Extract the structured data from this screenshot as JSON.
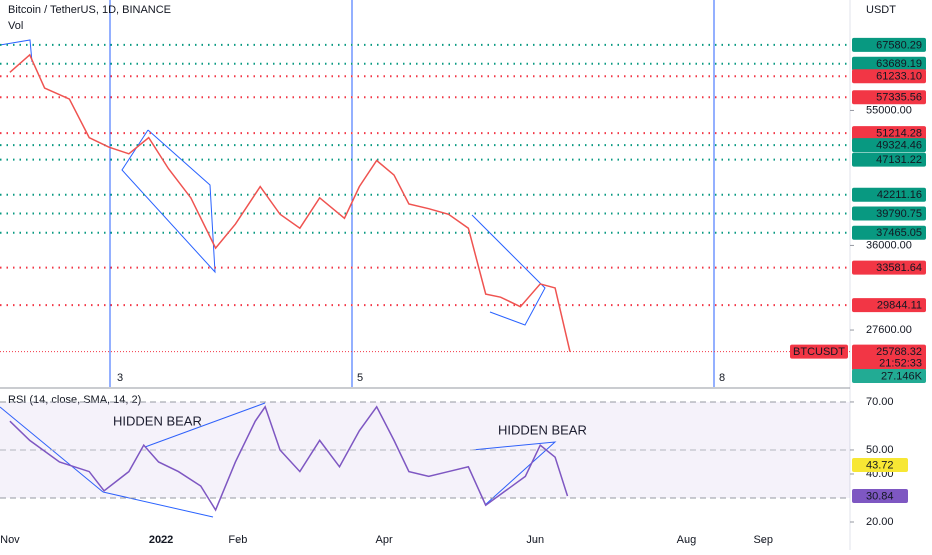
{
  "header": {
    "title": "Bitcoin / TetherUS, 1D, BINANCE",
    "volume_label": "Vol",
    "currency": "USDT"
  },
  "chart_data": [
    {
      "type": "line",
      "scale": "log",
      "color": "#ef5350",
      "x": [
        0,
        8,
        14,
        24,
        32,
        40,
        48,
        56,
        64,
        73,
        83,
        91,
        101,
        109,
        117,
        125,
        135,
        141,
        148,
        155,
        161,
        169,
        177,
        185,
        192,
        198,
        206,
        214,
        220,
        226
      ],
      "values": [
        62000,
        65500,
        59000,
        57000,
        50500,
        49000,
        48000,
        50500,
        45800,
        41800,
        35700,
        38500,
        43300,
        39700,
        38000,
        41800,
        39200,
        43300,
        47000,
        44900,
        41000,
        40400,
        39700,
        38000,
        30900,
        30600,
        29700,
        31900,
        31500,
        25788.32
      ],
      "xlim": [
        -4,
        339
      ],
      "xticks": [
        {
          "value": 0,
          "label": "Nov"
        },
        {
          "value": 61,
          "label": "2022"
        },
        {
          "value": 92,
          "label": "Feb"
        },
        {
          "value": 151,
          "label": "Apr"
        },
        {
          "value": 212,
          "label": "Jun"
        },
        {
          "value": 273,
          "label": "Aug"
        },
        {
          "value": 304,
          "label": "Sep"
        }
      ],
      "ylim": [
        23080,
        77800
      ],
      "yticks": [
        {
          "value": 55000,
          "label": "55000.00"
        },
        {
          "value": 36000,
          "label": "36000.00"
        },
        {
          "value": 27600,
          "label": "27600.00"
        }
      ],
      "levels": [
        {
          "value": 67580.29,
          "color": "#089981"
        },
        {
          "value": 63689.19,
          "color": "#089981"
        },
        {
          "value": 61233.1,
          "label": "61233.10",
          "color": "#f23645"
        },
        {
          "value": 57335.56,
          "color": "#f23645"
        },
        {
          "value": 51214.28,
          "color": "#f23645"
        },
        {
          "value": 49324.46,
          "color": "#089981"
        },
        {
          "value": 47131.22,
          "color": "#089981"
        },
        {
          "value": 42211.16,
          "color": "#089981"
        },
        {
          "value": 39790.75,
          "color": "#089981"
        },
        {
          "value": 37465.05,
          "color": "#089981"
        },
        {
          "value": 33581.64,
          "color": "#f23645"
        },
        {
          "value": 29844.11,
          "color": "#f23645"
        }
      ],
      "last": {
        "symbol": "BTCUSDT",
        "value": 25788.32,
        "countdown": "21:52:33"
      },
      "volume": {
        "value": 27146,
        "label": "27.146K"
      },
      "markers": [
        "3",
        "5",
        "8"
      ]
    },
    {
      "type": "line",
      "title": "RSI (14, close, SMA, 14, 2)",
      "color": "#7e57c2",
      "x": [
        0,
        8,
        20,
        32,
        38,
        48,
        54,
        60,
        68,
        77,
        83,
        91,
        99,
        103,
        109,
        117,
        125,
        133,
        141,
        148,
        155,
        161,
        169,
        177,
        185,
        192,
        200,
        208,
        214,
        220,
        225
      ],
      "values": [
        62,
        54,
        45,
        41,
        33,
        41,
        52,
        45,
        41,
        35,
        25,
        45,
        62,
        68,
        50,
        41,
        54,
        43,
        58,
        68,
        54,
        41,
        39,
        41,
        43,
        27,
        33,
        39,
        52,
        47,
        30.84
      ],
      "ylim": [
        12.5,
        75.4
      ],
      "yticks": [
        {
          "value": 70,
          "label": "70.00"
        },
        {
          "value": 50,
          "label": "50.00"
        },
        {
          "value": 40,
          "label": "40.00"
        },
        {
          "value": 20,
          "label": "20.00"
        }
      ],
      "band": [
        30,
        70
      ],
      "sma_last": 43.72,
      "annotations": [
        "HIDDEN BEAR",
        "HIDDEN BEAR"
      ]
    }
  ]
}
